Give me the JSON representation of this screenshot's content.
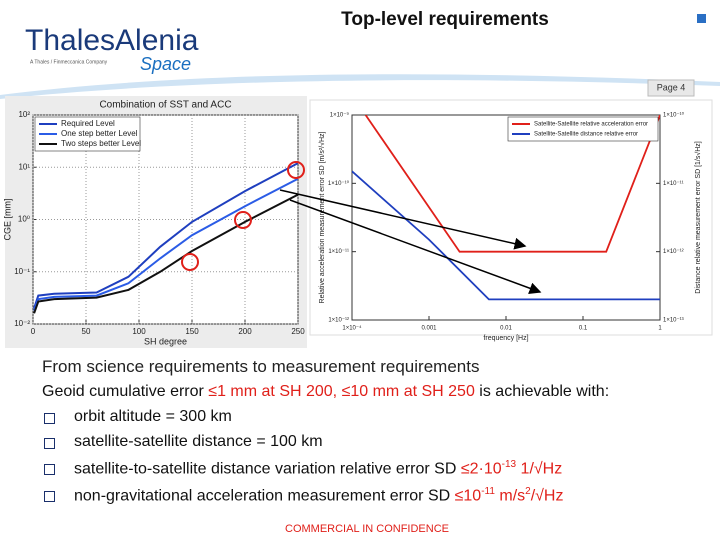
{
  "header": {
    "title": "Top-level requirements",
    "logo": "ThalesAlenia",
    "logo_tagline": "A Thales / Finmeccanica Company",
    "logo_space": "Space",
    "page": "Page 4"
  },
  "chart_data": [
    {
      "type": "line",
      "title": "Combination of SST and ACC",
      "x_label": "SH degree",
      "y_label": "CGE [mm]",
      "xlim": [
        0,
        250
      ],
      "xticks": [
        0,
        50,
        100,
        150,
        200,
        250
      ],
      "ylim": [
        0.01,
        100
      ],
      "ylog": true,
      "yticks": [
        {
          "value": 0.01,
          "label": "10⁻²"
        },
        {
          "value": 0.1,
          "label": "10⁻¹"
        },
        {
          "value": 1,
          "label": "10⁰"
        },
        {
          "value": 10,
          "label": "10¹"
        },
        {
          "value": 100,
          "label": "10²"
        }
      ],
      "grid": true,
      "legend": "upper left",
      "series": [
        {
          "name": "Required Level",
          "color": "#1f3fbf",
          "x": [
            1,
            5,
            20,
            60,
            90,
            120,
            150,
            200,
            250
          ],
          "values": [
            0.02,
            0.035,
            0.038,
            0.04,
            0.08,
            0.3,
            0.9,
            3.5,
            12
          ]
        },
        {
          "name": "One step better Level",
          "color": "#2b5ce6",
          "x": [
            1,
            5,
            20,
            60,
            90,
            120,
            150,
            200,
            250
          ],
          "values": [
            0.018,
            0.03,
            0.033,
            0.035,
            0.06,
            0.18,
            0.5,
            1.8,
            6
          ]
        },
        {
          "name": "Two steps better Level",
          "color": "#111111",
          "x": [
            1,
            5,
            20,
            60,
            90,
            120,
            150,
            200,
            250
          ],
          "values": [
            0.016,
            0.027,
            0.03,
            0.032,
            0.045,
            0.1,
            0.25,
            0.9,
            3
          ]
        }
      ]
    },
    {
      "type": "line",
      "x_label": "frequency [Hz]",
      "y_label": "Relative acceleration measurement error SD [m/s²/√Hz]",
      "y2_label": "Distance relative measurement error SD [1/s√Hz]",
      "xlim": [
        0.0001,
        1
      ],
      "xlog": true,
      "xticks": [
        {
          "value": 0.0001,
          "label": "1×10⁻⁴"
        },
        0.001,
        0.01,
        0.1,
        1
      ],
      "ylim": [
        1e-12,
        1e-09
      ],
      "ylog": true,
      "yticks": [
        {
          "value": 1e-12,
          "label": "1×10⁻¹²"
        },
        {
          "value": 1e-11,
          "label": "1×10⁻¹¹"
        },
        {
          "value": 1e-10,
          "label": "1×10⁻¹⁰"
        },
        {
          "value": 1e-09,
          "label": "1×10⁻⁹"
        }
      ],
      "y2lim": [
        1e-13,
        1e-10
      ],
      "y2log": true,
      "y2ticks": [
        {
          "value": 1e-13,
          "label": "1×10⁻¹³"
        },
        {
          "value": 1e-12,
          "label": "1×10⁻¹²"
        },
        {
          "value": 1e-11,
          "label": "1×10⁻¹¹"
        },
        {
          "value": 1e-10,
          "label": "1×10⁻¹⁰"
        }
      ],
      "grid": false,
      "legend": "upper right",
      "series": [
        {
          "name": "Satellite-Satellite relative acceleration error",
          "color": "#e0201a",
          "x": [
            0.00015,
            0.0025,
            0.2,
            1
          ],
          "values": [
            1e-09,
            1e-11,
            1e-11,
            1e-09
          ]
        },
        {
          "name": "Satellite-Satellite distance relative error",
          "color": "#1f3fbf",
          "axis": "y2",
          "x": [
            0.0001,
            0.001,
            0.006,
            1
          ],
          "values": [
            1.5e-11,
            1.5e-12,
            2e-13,
            2e-13
          ]
        }
      ]
    }
  ],
  "body": {
    "heading": "From science requirements to measurement requirements",
    "intro": [
      "Geoid cumulative error ",
      "≤1 mm at SH 200, ≤10 mm at SH 250",
      " is achievable with:"
    ],
    "bullets": [
      [
        "orbit altitude = 300 km"
      ],
      [
        "satellite-satellite distance = 100 km"
      ],
      [
        "satellite-to-satellite distance variation relative error SD ",
        "≤2·10",
        "-13",
        " 1/√Hz"
      ],
      [
        "non-gravitational acceleration measurement error SD ",
        "≤10",
        "-11",
        " m/s",
        "2",
        "/√Hz"
      ]
    ]
  },
  "footer": "COMMERCIAL IN CONFIDENCE"
}
